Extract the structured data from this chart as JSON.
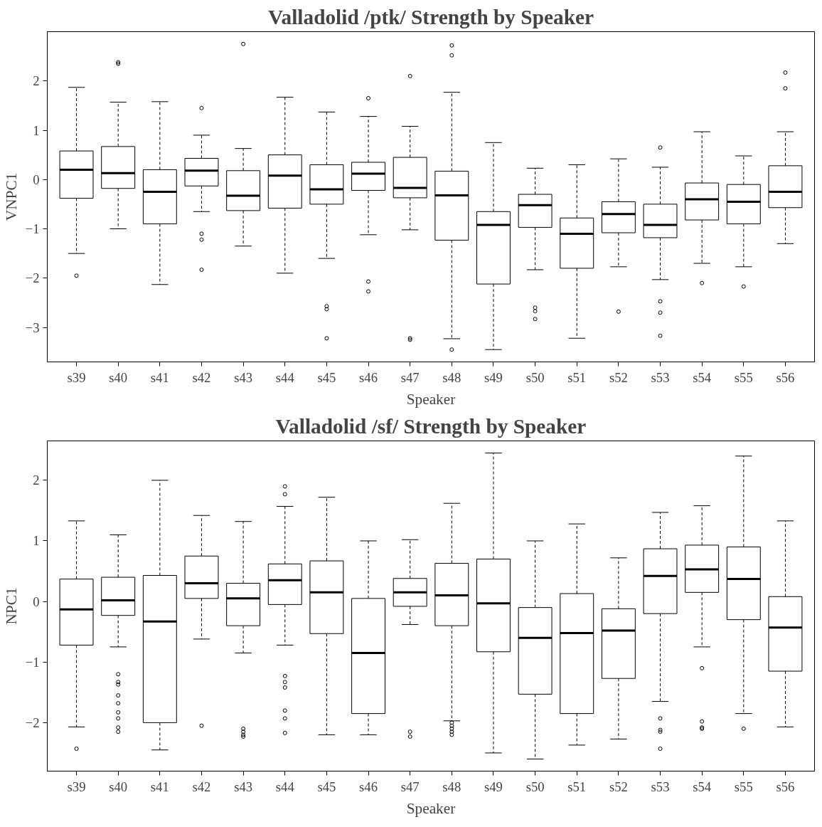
{
  "chart_data": [
    {
      "type": "box",
      "title": "Valladolid /ptk/ Strength by Speaker",
      "xlabel": "Speaker",
      "ylabel": "VNPC1",
      "ylim": [
        -3.7,
        3.0
      ],
      "yticks": [
        -3,
        -2,
        -1,
        0,
        1,
        2
      ],
      "grid": false,
      "categories": [
        "s39",
        "s40",
        "s41",
        "s42",
        "s43",
        "s44",
        "s45",
        "s46",
        "s47",
        "s48",
        "s49",
        "s50",
        "s51",
        "s52",
        "s53",
        "s54",
        "s55",
        "s56"
      ],
      "boxes": [
        {
          "low": -1.5,
          "q1": -0.38,
          "median": 0.2,
          "q3": 0.58,
          "high": 1.87,
          "outliers": [
            -1.95
          ]
        },
        {
          "low": -1.0,
          "q1": -0.18,
          "median": 0.13,
          "q3": 0.67,
          "high": 1.57,
          "outliers": [
            2.35,
            2.38
          ]
        },
        {
          "low": -2.13,
          "q1": -0.9,
          "median": -0.25,
          "q3": 0.2,
          "high": 1.58
        },
        {
          "low": -0.65,
          "q1": -0.13,
          "median": 0.18,
          "q3": 0.43,
          "high": 0.9,
          "outliers": [
            1.45,
            -1.1,
            -1.22,
            -1.83
          ]
        },
        {
          "low": -1.35,
          "q1": -0.63,
          "median": -0.33,
          "q3": 0.18,
          "high": 0.63,
          "outliers": [
            2.75
          ]
        },
        {
          "low": -1.9,
          "q1": -0.58,
          "median": 0.08,
          "q3": 0.5,
          "high": 1.67
        },
        {
          "low": -1.6,
          "q1": -0.5,
          "median": -0.2,
          "q3": 0.3,
          "high": 1.37,
          "outliers": [
            -2.57,
            -2.63,
            -3.22
          ]
        },
        {
          "low": -1.12,
          "q1": -0.22,
          "median": 0.12,
          "q3": 0.35,
          "high": 1.28,
          "outliers": [
            1.65,
            -2.07,
            -2.27
          ]
        },
        {
          "low": -1.02,
          "q1": -0.37,
          "median": -0.17,
          "q3": 0.45,
          "high": 1.08,
          "outliers": [
            2.1,
            -3.22,
            -3.25
          ]
        },
        {
          "low": -3.23,
          "q1": -1.23,
          "median": -0.32,
          "q3": 0.17,
          "high": 1.77,
          "outliers": [
            2.52,
            2.72,
            -3.45
          ]
        },
        {
          "low": -3.45,
          "q1": -2.12,
          "median": -0.92,
          "q3": -0.65,
          "high": 0.75
        },
        {
          "low": -1.83,
          "q1": -0.97,
          "median": -0.52,
          "q3": -0.3,
          "high": 0.23,
          "outliers": [
            -2.6,
            -2.67,
            -2.83
          ]
        },
        {
          "low": -3.22,
          "q1": -1.8,
          "median": -1.1,
          "q3": -0.78,
          "high": 0.3
        },
        {
          "low": -1.77,
          "q1": -1.08,
          "median": -0.7,
          "q3": -0.45,
          "high": 0.42,
          "outliers": [
            -2.68
          ]
        },
        {
          "low": -2.03,
          "q1": -1.18,
          "median": -0.92,
          "q3": -0.5,
          "high": 0.25,
          "outliers": [
            0.65,
            -2.47,
            -2.7,
            -3.17
          ]
        },
        {
          "low": -1.7,
          "q1": -0.82,
          "median": -0.4,
          "q3": -0.07,
          "high": 0.97,
          "outliers": [
            -2.1
          ]
        },
        {
          "low": -1.77,
          "q1": -0.9,
          "median": -0.45,
          "q3": -0.1,
          "high": 0.48,
          "outliers": [
            -2.17
          ]
        },
        {
          "low": -1.3,
          "q1": -0.57,
          "median": -0.25,
          "q3": 0.28,
          "high": 0.97,
          "outliers": [
            1.85,
            2.17
          ]
        }
      ]
    },
    {
      "type": "box",
      "title": "Valladolid /sf/ Strength by Speaker",
      "xlabel": "Speaker",
      "ylabel": "NPC1",
      "ylim": [
        -2.8,
        2.65
      ],
      "yticks": [
        -2,
        -1,
        0,
        1,
        2
      ],
      "grid": false,
      "categories": [
        "s39",
        "s40",
        "s41",
        "s42",
        "s43",
        "s44",
        "s45",
        "s46",
        "s47",
        "s48",
        "s49",
        "s50",
        "s51",
        "s52",
        "s53",
        "s54",
        "s55",
        "s56"
      ],
      "boxes": [
        {
          "low": -2.07,
          "q1": -0.72,
          "median": -0.13,
          "q3": 0.37,
          "high": 1.33,
          "outliers": [
            -2.43
          ]
        },
        {
          "low": -0.75,
          "q1": -0.23,
          "median": 0.02,
          "q3": 0.4,
          "high": 1.1,
          "outliers": [
            -1.2,
            -1.33,
            -1.37,
            -1.55,
            -1.68,
            -1.83,
            -1.93,
            -2.08,
            -2.15
          ]
        },
        {
          "low": -2.45,
          "q1": -2.0,
          "median": -0.33,
          "q3": 0.43,
          "high": 2.0
        },
        {
          "low": -0.62,
          "q1": 0.05,
          "median": 0.3,
          "q3": 0.75,
          "high": 1.42,
          "outliers": [
            -2.05
          ]
        },
        {
          "low": -0.85,
          "q1": -0.4,
          "median": 0.05,
          "q3": 0.3,
          "high": 1.32,
          "outliers": [
            -2.1,
            -2.15,
            -2.2,
            -2.23
          ]
        },
        {
          "low": -0.72,
          "q1": -0.05,
          "median": 0.35,
          "q3": 0.62,
          "high": 1.57,
          "outliers": [
            1.9,
            1.77,
            -1.23,
            -1.33,
            -1.42,
            -1.8,
            -1.93,
            -2.17
          ]
        },
        {
          "low": -2.2,
          "q1": -0.53,
          "median": 0.15,
          "q3": 0.67,
          "high": 1.72
        },
        {
          "low": -2.2,
          "q1": -1.85,
          "median": -0.85,
          "q3": 0.05,
          "high": 1.0
        },
        {
          "low": -0.38,
          "q1": -0.08,
          "median": 0.15,
          "q3": 0.38,
          "high": 1.02,
          "outliers": [
            -2.15,
            -2.23
          ]
        },
        {
          "low": -1.97,
          "q1": -0.4,
          "median": 0.1,
          "q3": 0.63,
          "high": 1.62,
          "outliers": [
            -2.0,
            -2.05,
            -2.1,
            -2.15,
            -2.2
          ]
        },
        {
          "low": -2.5,
          "q1": -0.83,
          "median": -0.03,
          "q3": 0.7,
          "high": 2.45
        },
        {
          "low": -2.6,
          "q1": -1.53,
          "median": -0.6,
          "q3": -0.1,
          "high": 1.0
        },
        {
          "low": -2.37,
          "q1": -1.85,
          "median": -0.52,
          "q3": 0.13,
          "high": 1.28
        },
        {
          "low": -2.27,
          "q1": -1.27,
          "median": -0.48,
          "q3": -0.12,
          "high": 0.72
        },
        {
          "low": -1.65,
          "q1": -0.2,
          "median": 0.42,
          "q3": 0.87,
          "high": 1.47,
          "outliers": [
            -1.93,
            -2.12,
            -2.15,
            -2.43
          ]
        },
        {
          "low": -0.75,
          "q1": 0.15,
          "median": 0.53,
          "q3": 0.93,
          "high": 1.58,
          "outliers": [
            -1.1,
            -1.98,
            -2.08,
            -2.1
          ]
        },
        {
          "low": -1.85,
          "q1": -0.3,
          "median": 0.37,
          "q3": 0.9,
          "high": 2.4,
          "outliers": [
            -2.1
          ]
        },
        {
          "low": -2.07,
          "q1": -1.15,
          "median": -0.43,
          "q3": 0.08,
          "high": 1.33
        }
      ]
    }
  ]
}
